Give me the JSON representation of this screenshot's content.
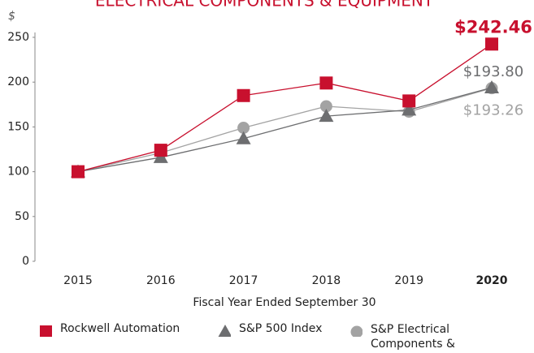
{
  "chart_data": {
    "type": "line",
    "title": "ELECTRICAL COMPONENTS & EQUIPMENT",
    "y_label": "$",
    "x_label": "Fiscal Year Ended September 30",
    "categories": [
      "2015",
      "2016",
      "2017",
      "2018",
      "2019",
      "2020"
    ],
    "series": [
      {
        "name": "Rockwell Automation",
        "color": "#c8102e",
        "marker": "square",
        "values": [
          100,
          124,
          185,
          199,
          179,
          242.46
        ],
        "value_labels": [
          null,
          null,
          null,
          null,
          null,
          "$242.46"
        ]
      },
      {
        "name": "S&P 500 Index",
        "color": "#6d6e70",
        "marker": "triangle",
        "values": [
          100,
          116,
          137,
          162,
          169,
          193.8
        ],
        "value_labels": [
          null,
          null,
          null,
          null,
          null,
          "$193.80"
        ]
      },
      {
        "name": "S&P Electrical Components & Equipment",
        "color": "#a3a3a3",
        "marker": "circle",
        "values": [
          100,
          121,
          149,
          173,
          167,
          193.26
        ],
        "value_labels": [
          null,
          null,
          null,
          null,
          null,
          "$193.26"
        ]
      }
    ],
    "ylim": [
      0,
      250
    ],
    "yticks": [
      0,
      50,
      100,
      150,
      200,
      250
    ],
    "grid": false
  }
}
